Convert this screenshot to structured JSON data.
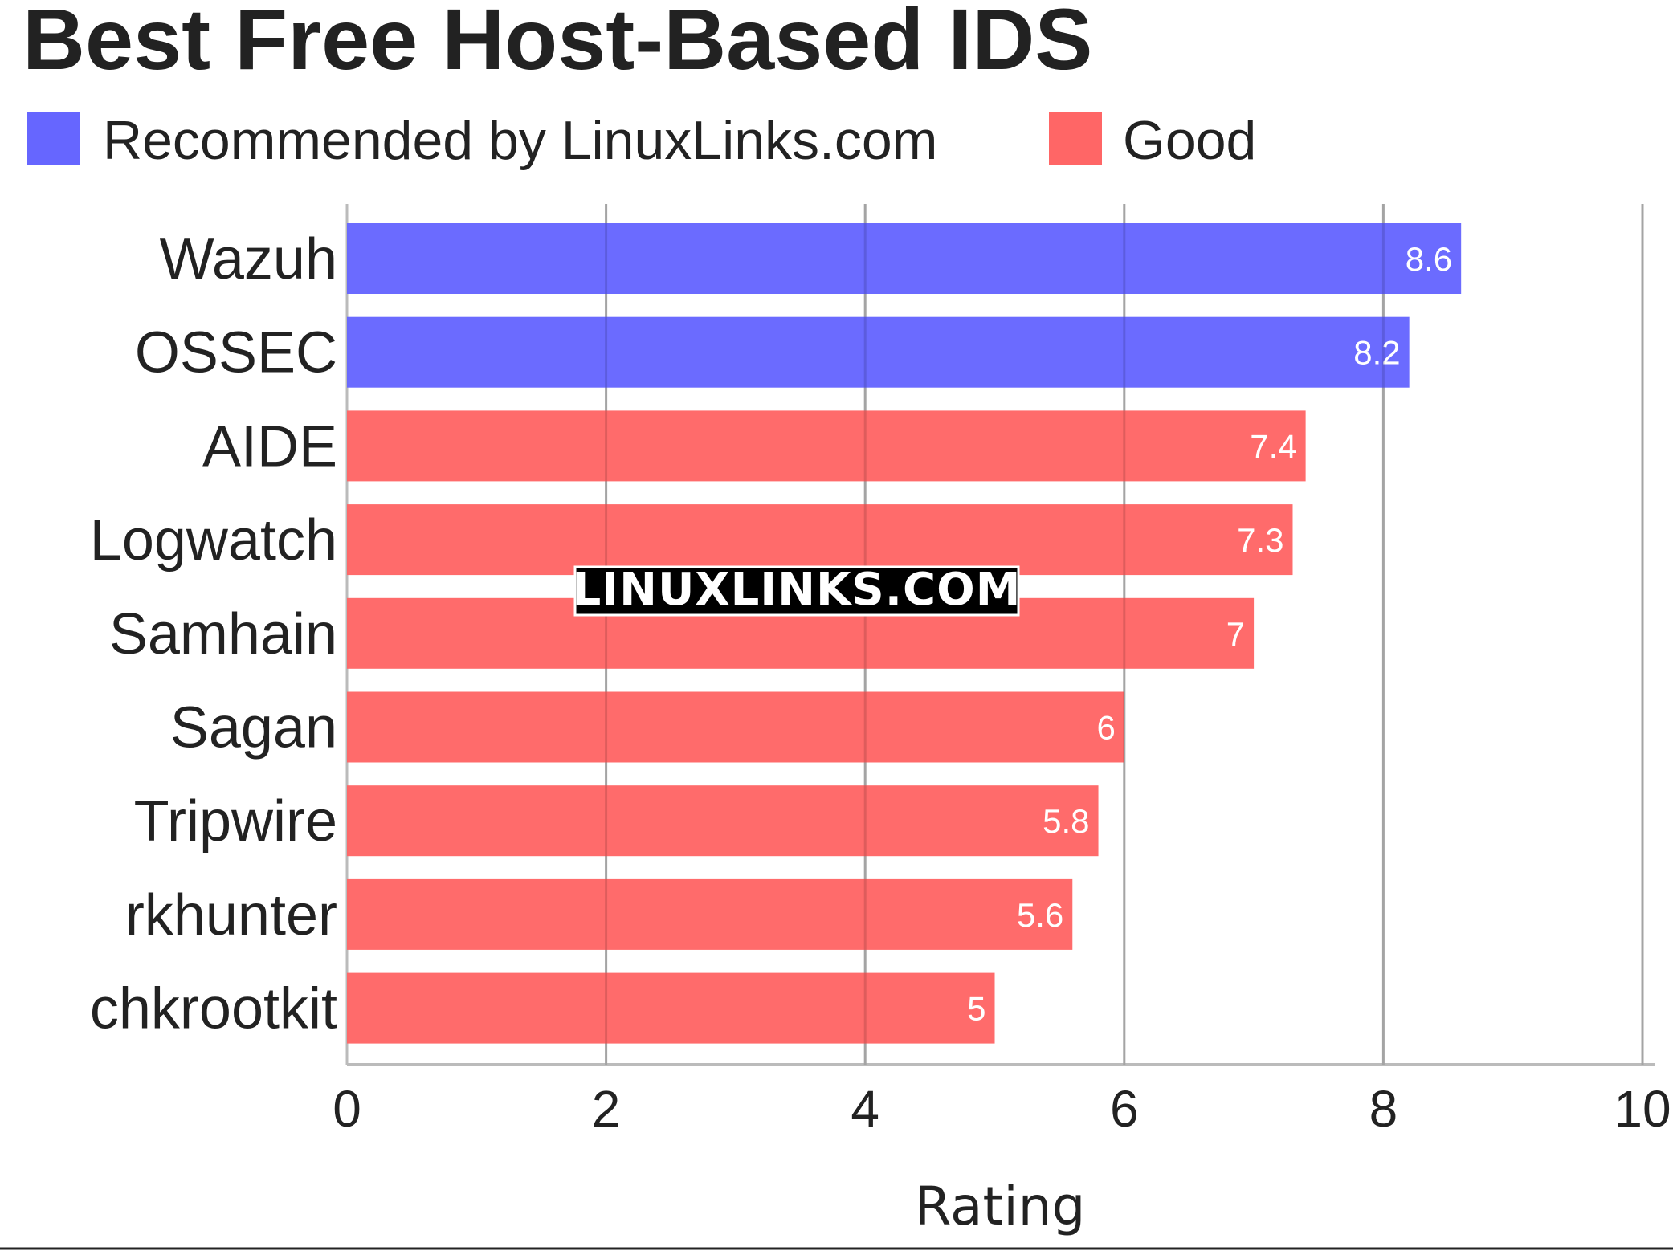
{
  "chart_data": {
    "type": "bar",
    "orientation": "horizontal",
    "title": "Best Free Host-Based IDS",
    "xlabel": "Rating",
    "ylabel": "",
    "xlim": [
      0,
      10
    ],
    "x_ticks": [
      "0",
      "2",
      "4",
      "6",
      "8",
      "10"
    ],
    "grid": "vertical",
    "legend_position": "top-left",
    "legend": [
      {
        "name": "Recommended by LinuxLinks.com",
        "color": "#6666ff"
      },
      {
        "name": "Good",
        "color": "#ff6666"
      }
    ],
    "categories": [
      "Wazuh",
      "OSSEC",
      "AIDE",
      "Logwatch",
      "Samhain",
      "Sagan",
      "Tripwire",
      "rkhunter",
      "chkrootkit"
    ],
    "values": [
      8.6,
      8.2,
      7.4,
      7.3,
      7,
      6,
      5.8,
      5.6,
      5
    ],
    "value_labels": [
      "8.6",
      "8.2",
      "7.4",
      "7.3",
      "7",
      "6",
      "5.8",
      "5.6",
      "5"
    ],
    "bar_groups": [
      "Recommended by LinuxLinks.com",
      "Recommended by LinuxLinks.com",
      "Good",
      "Good",
      "Good",
      "Good",
      "Good",
      "Good",
      "Good"
    ]
  },
  "watermark": "LINUXLINKS.COM"
}
